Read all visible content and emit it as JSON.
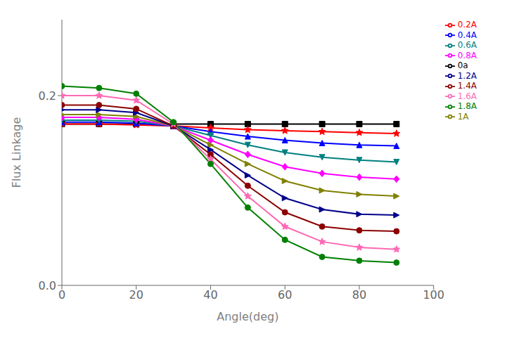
{
  "chart_data": {
    "type": "line",
    "xlabel": "Angle(deg)",
    "ylabel": "Flux Linkage",
    "x": [
      0,
      10,
      20,
      30,
      40,
      50,
      60,
      70,
      80,
      90
    ],
    "xlim": [
      0,
      100
    ],
    "ylim": [
      0.0,
      0.28
    ],
    "xticks": [
      0,
      20,
      40,
      60,
      80,
      100
    ],
    "yticks": [
      {
        "value": 0.0,
        "label": "0.0"
      },
      0.2
    ],
    "grid": false,
    "legend": "right",
    "series": [
      {
        "name": "0a",
        "color": "#000000",
        "marker": "square",
        "values": [
          0.17,
          0.17,
          0.17,
          0.17,
          0.17,
          0.17,
          0.17,
          0.17,
          0.17,
          0.17
        ]
      },
      {
        "name": "0.2A",
        "color": "#ff0000",
        "marker": "star",
        "values": [
          0.17,
          0.17,
          0.169,
          0.168,
          0.166,
          0.164,
          0.163,
          0.162,
          0.161,
          0.16
        ]
      },
      {
        "name": "0.4A",
        "color": "#0000ff",
        "marker": "triangle-up",
        "values": [
          0.172,
          0.172,
          0.171,
          0.168,
          0.162,
          0.157,
          0.153,
          0.15,
          0.148,
          0.147
        ]
      },
      {
        "name": "0.6A",
        "color": "#008080",
        "marker": "triangle-down",
        "values": [
          0.174,
          0.174,
          0.173,
          0.168,
          0.158,
          0.148,
          0.14,
          0.135,
          0.132,
          0.13
        ]
      },
      {
        "name": "0.8A",
        "color": "#ff00ff",
        "marker": "diamond",
        "values": [
          0.177,
          0.177,
          0.175,
          0.168,
          0.153,
          0.138,
          0.125,
          0.118,
          0.114,
          0.112
        ]
      },
      {
        "name": "1A",
        "color": "#808000",
        "marker": "triangle-right",
        "values": [
          0.18,
          0.18,
          0.178,
          0.168,
          0.148,
          0.128,
          0.11,
          0.1,
          0.096,
          0.094
        ]
      },
      {
        "name": "1.2A",
        "color": "#00008b",
        "marker": "triangle-right",
        "values": [
          0.185,
          0.185,
          0.182,
          0.168,
          0.143,
          0.116,
          0.092,
          0.08,
          0.075,
          0.074
        ]
      },
      {
        "name": "1.4A",
        "color": "#8b0000",
        "marker": "circle",
        "values": [
          0.19,
          0.19,
          0.186,
          0.168,
          0.138,
          0.105,
          0.077,
          0.062,
          0.058,
          0.057
        ]
      },
      {
        "name": "1.6A",
        "color": "#ff69b4",
        "marker": "star",
        "values": [
          0.2,
          0.2,
          0.195,
          0.17,
          0.133,
          0.094,
          0.062,
          0.046,
          0.04,
          0.038
        ]
      },
      {
        "name": "1.8A",
        "color": "#008000",
        "marker": "circle",
        "values": [
          0.21,
          0.208,
          0.202,
          0.172,
          0.128,
          0.082,
          0.048,
          0.03,
          0.026,
          0.024
        ]
      }
    ]
  }
}
